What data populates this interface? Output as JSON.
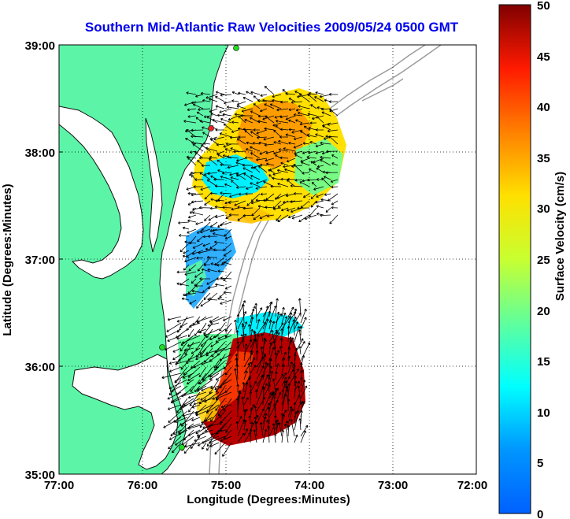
{
  "title": "Southern Mid-Atlantic Raw Velocities 2009/05/24 0500 GMT",
  "map": {
    "xlabel": "Longitude (Degrees:Minutes)",
    "ylabel": "Latitude (Degrees:Minutes)",
    "x_ticks": [
      "77:00",
      "76:00",
      "75:00",
      "74:00",
      "73:00",
      "72:00"
    ],
    "y_ticks": [
      "39:00",
      "38:00",
      "37:00",
      "36:00",
      "35:00"
    ],
    "lon_range": [
      -77,
      -72
    ],
    "lat_range": [
      35,
      39
    ],
    "grid": "dotted",
    "land_color": "#5cf5a8",
    "station_marker_colors": [
      "#22dd22",
      "#ee2222"
    ]
  },
  "colorbar": {
    "label": "Surface Velocity (cm/s)",
    "ticks": [
      "0",
      "5",
      "10",
      "15",
      "20",
      "25",
      "30",
      "35",
      "40",
      "45",
      "50"
    ],
    "range": [
      0,
      50
    ],
    "colormap": "jet"
  }
}
